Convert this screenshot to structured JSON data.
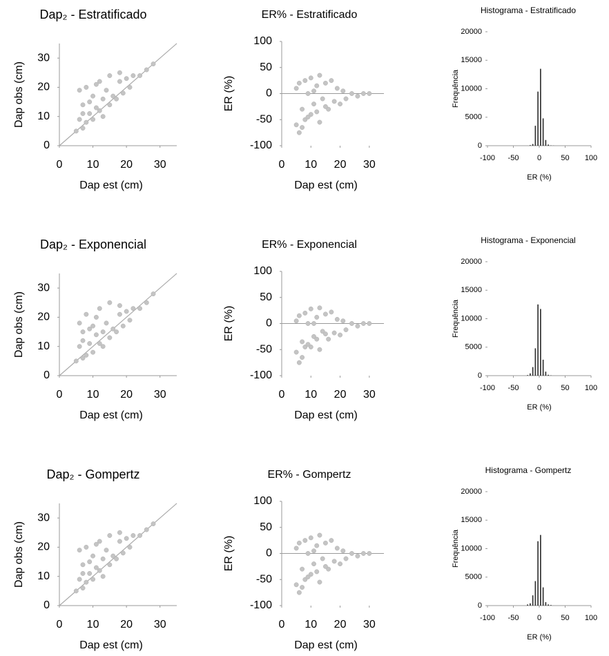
{
  "chart_data": [
    {
      "type": "scatter",
      "title": "Dap₂ - Estratificado",
      "xlabel": "Dap est (cm)",
      "ylabel": "Dap obs (cm)",
      "color": "#c4c4c4",
      "x": [
        5,
        6,
        6,
        7,
        7,
        8,
        8,
        9,
        10,
        10,
        11,
        12,
        12,
        13,
        14,
        15,
        15,
        16,
        17,
        18,
        19,
        20,
        21,
        22,
        24,
        26,
        28,
        7,
        9,
        11,
        13,
        18
      ],
      "values": [
        5,
        9,
        19,
        6,
        14,
        8,
        20,
        11,
        9,
        17,
        13,
        12,
        22,
        10,
        19,
        14,
        24,
        17,
        16,
        22,
        18,
        23,
        20,
        24,
        24,
        26,
        28,
        11,
        15,
        21,
        16,
        25
      ],
      "xlim": [
        0,
        35
      ],
      "ylim": [
        0,
        35
      ],
      "xticks": [
        0,
        10,
        20,
        30
      ],
      "yticks": [
        0,
        10,
        20,
        30
      ]
    },
    {
      "type": "scatter",
      "title": "ER% - Estratificado",
      "xlabel": "Dap est (cm)",
      "ylabel": "ER (%)",
      "color": "#c4c4c4",
      "x": [
        5,
        5,
        6,
        6,
        7,
        8,
        8,
        9,
        10,
        10,
        11,
        12,
        13,
        13,
        14,
        15,
        16,
        17,
        18,
        19,
        20,
        21,
        22,
        24,
        26,
        28,
        30,
        7,
        9,
        12,
        15,
        11
      ],
      "values": [
        -60,
        10,
        -75,
        20,
        -30,
        -50,
        25,
        0,
        -40,
        30,
        -20,
        15,
        -55,
        35,
        -10,
        20,
        -30,
        25,
        -15,
        10,
        -20,
        5,
        -10,
        0,
        -5,
        0,
        0,
        -65,
        -45,
        -35,
        -25,
        5
      ],
      "xlim": [
        0,
        35
      ],
      "ylim": [
        -100,
        100
      ],
      "xticks": [
        0,
        10,
        20,
        30
      ],
      "yticks": [
        -100,
        -50,
        0,
        50,
        100
      ]
    },
    {
      "type": "histogram",
      "title": "Histograma - Estratificado",
      "xlabel": "ER (%)",
      "ylabel": "Frequência",
      "color": "#333333",
      "bins": [
        -20,
        -15,
        -10,
        -5,
        0,
        5,
        10,
        15,
        20,
        25,
        30
      ],
      "values": [
        100,
        300,
        3500,
        9500,
        13500,
        4800,
        1000,
        200,
        50,
        20
      ],
      "xlim": [
        -100,
        100
      ],
      "ylim": [
        0,
        20000
      ],
      "xticks": [
        -100,
        -50,
        0,
        50,
        100
      ],
      "yticks": [
        0,
        5000,
        10000,
        15000,
        20000
      ]
    },
    {
      "type": "scatter",
      "title": "Dap₂ - Exponencial",
      "xlabel": "Dap est (cm)",
      "ylabel": "Dap obs (cm)",
      "color": "#c4c4c4",
      "x": [
        5,
        6,
        6,
        7,
        7,
        8,
        8,
        9,
        10,
        10,
        11,
        12,
        12,
        13,
        14,
        15,
        15,
        16,
        17,
        18,
        19,
        20,
        21,
        22,
        24,
        26,
        28,
        7,
        9,
        11,
        13,
        18
      ],
      "values": [
        5,
        10,
        18,
        6,
        15,
        7,
        21,
        11,
        8,
        17,
        14,
        11,
        23,
        10,
        18,
        13,
        25,
        16,
        15,
        21,
        17,
        22,
        19,
        23,
        23,
        25,
        28,
        12,
        16,
        20,
        15,
        24
      ],
      "xlim": [
        0,
        35
      ],
      "ylim": [
        0,
        35
      ],
      "xticks": [
        0,
        10,
        20,
        30
      ],
      "yticks": [
        0,
        10,
        20,
        30
      ]
    },
    {
      "type": "scatter",
      "title": "ER% - Exponencial",
      "xlabel": "Dap est (cm)",
      "ylabel": "ER (%)",
      "color": "#c4c4c4",
      "x": [
        5,
        5,
        6,
        6,
        7,
        8,
        8,
        9,
        10,
        10,
        11,
        12,
        13,
        13,
        14,
        15,
        16,
        17,
        18,
        19,
        20,
        21,
        22,
        24,
        26,
        28,
        30,
        7,
        9,
        12,
        15,
        11
      ],
      "values": [
        -55,
        5,
        -75,
        15,
        -35,
        -45,
        20,
        0,
        -45,
        28,
        -25,
        12,
        -50,
        30,
        -15,
        18,
        -30,
        22,
        -18,
        8,
        -22,
        5,
        -12,
        0,
        -5,
        0,
        0,
        -65,
        -40,
        -30,
        -20,
        0
      ],
      "xlim": [
        0,
        35
      ],
      "ylim": [
        -100,
        100
      ],
      "xticks": [
        0,
        10,
        20,
        30
      ],
      "yticks": [
        -100,
        -50,
        0,
        50,
        100
      ]
    },
    {
      "type": "histogram",
      "title": "Histograma - Exponencial",
      "xlabel": "ER (%)",
      "ylabel": "Frequência",
      "color": "#333333",
      "bins": [
        -25,
        -20,
        -15,
        -10,
        -5,
        0,
        5,
        10,
        15,
        20,
        25
      ],
      "values": [
        100,
        400,
        1500,
        4800,
        12500,
        11700,
        2800,
        700,
        150,
        50
      ],
      "xlim": [
        -100,
        100
      ],
      "ylim": [
        0,
        20000
      ],
      "xticks": [
        -100,
        -50,
        0,
        50,
        100
      ],
      "yticks": [
        0,
        5000,
        10000,
        15000,
        20000
      ]
    },
    {
      "type": "scatter",
      "title": "Dap₂ - Gompertz",
      "xlabel": "Dap est (cm)",
      "ylabel": "Dap obs (cm)",
      "color": "#c4c4c4",
      "x": [
        5,
        6,
        6,
        7,
        7,
        8,
        8,
        9,
        10,
        10,
        11,
        12,
        12,
        13,
        14,
        15,
        15,
        16,
        17,
        18,
        19,
        20,
        21,
        22,
        24,
        26,
        28,
        7,
        9,
        11,
        13,
        18
      ],
      "values": [
        5,
        9,
        19,
        6,
        14,
        8,
        20,
        11,
        9,
        17,
        13,
        12,
        22,
        10,
        19,
        14,
        24,
        17,
        16,
        22,
        18,
        23,
        20,
        24,
        24,
        26,
        28,
        11,
        15,
        21,
        16,
        25
      ],
      "xlim": [
        0,
        35
      ],
      "ylim": [
        0,
        35
      ],
      "xticks": [
        0,
        10,
        20,
        30
      ],
      "yticks": [
        0,
        10,
        20,
        30
      ]
    },
    {
      "type": "scatter",
      "title": "ER% - Gompertz",
      "xlabel": "Dap est (cm)",
      "ylabel": "ER (%)",
      "color": "#c4c4c4",
      "x": [
        5,
        5,
        6,
        6,
        7,
        8,
        8,
        9,
        10,
        10,
        11,
        12,
        13,
        13,
        14,
        15,
        16,
        17,
        18,
        19,
        20,
        21,
        22,
        24,
        26,
        28,
        30,
        7,
        9,
        12,
        15,
        11
      ],
      "values": [
        -60,
        10,
        -75,
        20,
        -30,
        -50,
        25,
        0,
        -40,
        30,
        -20,
        15,
        -55,
        35,
        -10,
        20,
        -30,
        25,
        -15,
        10,
        -20,
        5,
        -10,
        0,
        -5,
        0,
        0,
        -65,
        -45,
        -35,
        -25,
        5
      ],
      "xlim": [
        0,
        35
      ],
      "ylim": [
        -100,
        100
      ],
      "xticks": [
        0,
        10,
        20,
        30
      ],
      "yticks": [
        -100,
        -50,
        0,
        50,
        100
      ]
    },
    {
      "type": "histogram",
      "title": "Histograma - Gompertz",
      "xlabel": "ER (%)",
      "ylabel": "Frequência",
      "color": "#333333",
      "bins": [
        -25,
        -20,
        -15,
        -10,
        -5,
        0,
        5,
        10,
        15,
        20,
        25
      ],
      "values": [
        200,
        400,
        1800,
        4300,
        11300,
        12400,
        3200,
        600,
        200,
        100
      ],
      "xlim": [
        -100,
        100
      ],
      "ylim": [
        0,
        20000
      ],
      "xticks": [
        -100,
        -50,
        0,
        50,
        100
      ],
      "yticks": [
        0,
        5000,
        10000,
        15000,
        20000
      ]
    }
  ]
}
